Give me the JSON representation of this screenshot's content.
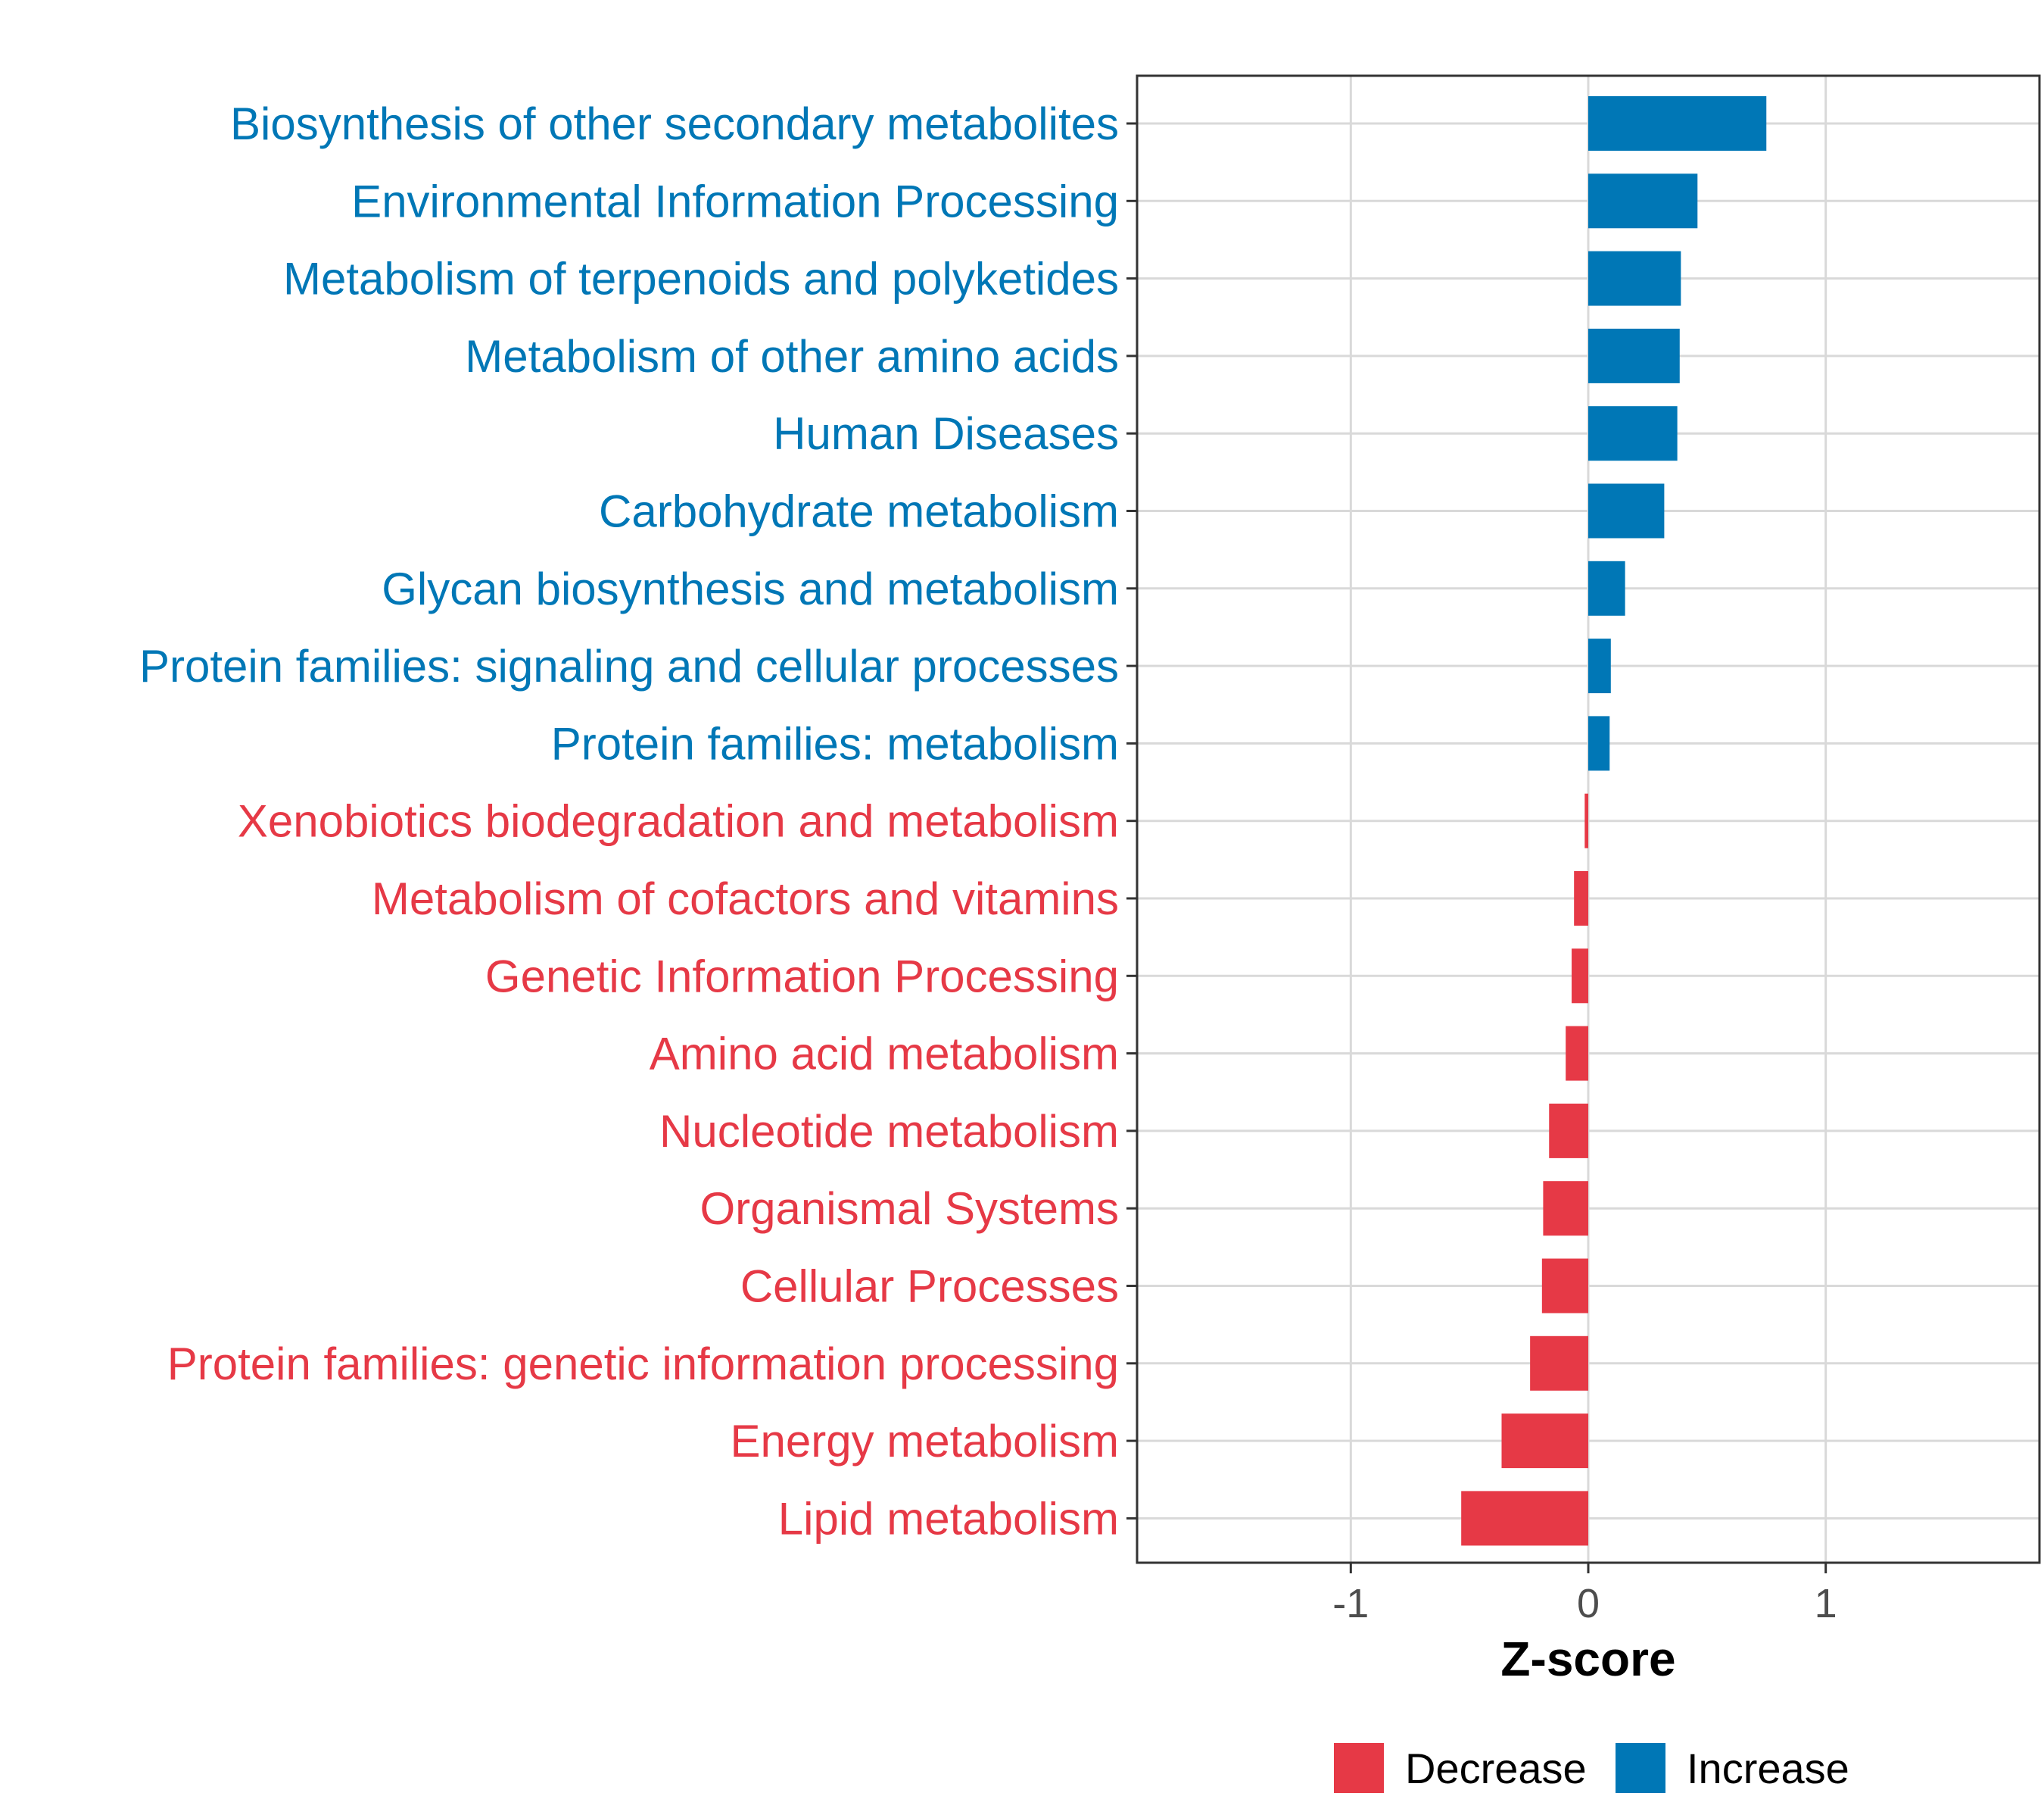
{
  "chart_data": {
    "type": "bar",
    "orientation": "horizontal",
    "title": "",
    "xlabel": "Z-score",
    "ylabel": "",
    "xlim": [
      -1.9,
      1.9
    ],
    "xticks": [
      {
        "value": -1,
        "label": "-1"
      },
      {
        "value": 0,
        "label": "0"
      },
      {
        "value": 1,
        "label": "1"
      }
    ],
    "grid": true,
    "categories": [
      "Biosynthesis of other secondary metabolites",
      "Environmental Information Processing",
      "Metabolism of terpenoids and polyketides",
      "Metabolism of other amino acids",
      "Human Diseases",
      "Carbohydrate metabolism",
      "Glycan biosynthesis and metabolism",
      "Protein families: signaling and cellular processes",
      "Protein families: metabolism",
      "Xenobiotics biodegradation and metabolism",
      "Metabolism of cofactors and vitamins",
      "Genetic Information Processing",
      "Amino acid metabolism",
      "Nucleotide metabolism",
      "Organismal Systems",
      "Cellular Processes",
      "Protein families: genetic information processing",
      "Energy metabolism",
      "Lipid metabolism"
    ],
    "values": [
      0.75,
      0.46,
      0.39,
      0.385,
      0.375,
      0.32,
      0.155,
      0.095,
      0.09,
      -0.015,
      -0.06,
      -0.07,
      -0.095,
      -0.165,
      -0.19,
      -0.195,
      -0.245,
      -0.365,
      -0.535
    ],
    "groups": [
      "Increase",
      "Increase",
      "Increase",
      "Increase",
      "Increase",
      "Increase",
      "Increase",
      "Increase",
      "Increase",
      "Decrease",
      "Decrease",
      "Decrease",
      "Decrease",
      "Decrease",
      "Decrease",
      "Decrease",
      "Decrease",
      "Decrease",
      "Decrease"
    ],
    "legend": {
      "position": "bottom",
      "entries": [
        {
          "label": "Decrease",
          "color": "#E63946"
        },
        {
          "label": "Increase",
          "color": "#0077B6"
        }
      ]
    },
    "colors": {
      "Decrease": "#E63946",
      "Increase": "#0077B6"
    }
  }
}
